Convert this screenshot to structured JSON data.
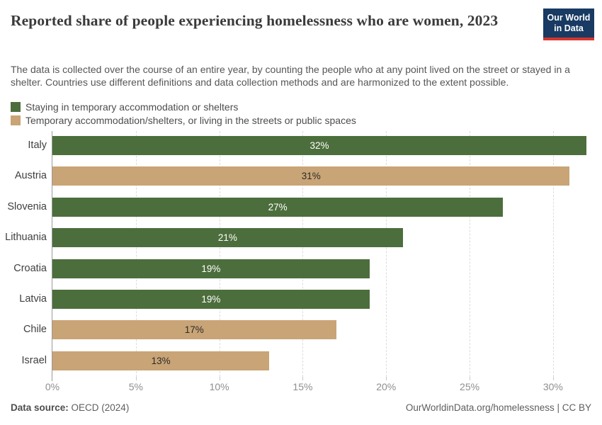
{
  "header": {
    "logo": {
      "line1": "Our World",
      "line2": "in Data",
      "bg_color": "#183a63",
      "accent_color": "#d7352c"
    }
  },
  "chart_data": {
    "type": "bar",
    "orientation": "horizontal",
    "title": "Reported share of people experiencing homelessness who are women, 2023",
    "subtitle": "The data is collected over the course of an entire year, by counting the people who at any point lived on the street or stayed in a shelter. Countries use different definitions and data collection methods and are harmonized to the extent possible.",
    "categories": [
      "Italy",
      "Austria",
      "Slovenia",
      "Lithuania",
      "Croatia",
      "Latvia",
      "Chile",
      "Israel"
    ],
    "values": [
      32,
      31,
      27,
      21,
      19,
      19,
      17,
      13
    ],
    "value_labels": [
      "32%",
      "31%",
      "27%",
      "21%",
      "19%",
      "19%",
      "17%",
      "13%"
    ],
    "series_index": [
      0,
      1,
      0,
      0,
      0,
      0,
      1,
      1
    ],
    "series": [
      {
        "name": "Staying in temporary accommodation or shelters",
        "color": "#4c6e3c",
        "label_color": "#ffffff"
      },
      {
        "name": "Temporary accommodation/shelters, or living in the streets or public spaces",
        "color": "#c9a476",
        "label_color": "#2b2b2b"
      }
    ],
    "xlabel": "",
    "ylabel": "",
    "xlim": [
      0,
      32
    ],
    "xticks": [
      0,
      5,
      10,
      15,
      20,
      25,
      30
    ],
    "xtick_labels": [
      "0%",
      "5%",
      "10%",
      "15%",
      "20%",
      "25%",
      "30%"
    ],
    "grid": "vertical-dashed",
    "legend_position": "top-left"
  },
  "footer": {
    "source_label": "Data source:",
    "source_value": " OECD (2024)",
    "right": "OurWorldinData.org/homelessness | CC BY"
  }
}
